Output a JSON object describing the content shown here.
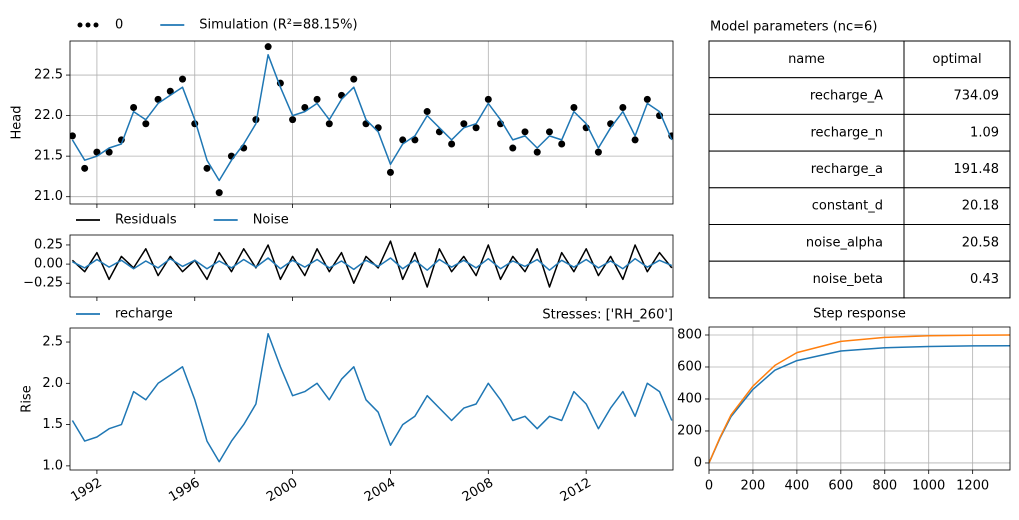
{
  "chart_data": [
    {
      "type": "line",
      "ylabel": "Head",
      "grid": true,
      "xtick_labels": false,
      "xlim": [
        1990.9,
        2015.55
      ],
      "xticks": [
        1992,
        1996,
        2000,
        2004,
        2008,
        2012
      ],
      "ylim": [
        20.91,
        22.92
      ],
      "yticks": [
        {
          "value": 21.0,
          "label": "21.0"
        },
        21.5,
        {
          "value": 22.0,
          "label": "22.0"
        },
        22.5
      ],
      "x": [
        1991.0,
        1991.5,
        1992.0,
        1992.5,
        1993.0,
        1993.5,
        1994.0,
        1994.5,
        1995.0,
        1995.5,
        1996.0,
        1996.5,
        1997.0,
        1997.5,
        1998.0,
        1998.5,
        1999.0,
        1999.5,
        2000.0,
        2000.5,
        2001.0,
        2001.5,
        2002.0,
        2002.5,
        2003.0,
        2003.5,
        2004.0,
        2004.5,
        2005.0,
        2005.5,
        2006.0,
        2006.5,
        2007.0,
        2007.5,
        2008.0,
        2008.5,
        2009.0,
        2009.5,
        2010.0,
        2010.5,
        2011.0,
        2011.5,
        2012.0,
        2012.5,
        2013.0,
        2013.5,
        2014.0,
        2014.5,
        2015.0,
        2015.5
      ],
      "series": [
        {
          "name": "0",
          "color": "#000000",
          "marker": "o",
          "values": [
            21.75,
            21.35,
            21.55,
            21.55,
            21.7,
            22.1,
            21.9,
            22.2,
            22.3,
            22.45,
            21.9,
            21.35,
            21.05,
            21.5,
            21.6,
            21.95,
            22.85,
            22.4,
            21.95,
            22.1,
            22.2,
            21.9,
            22.25,
            22.45,
            21.9,
            21.85,
            21.3,
            21.7,
            21.7,
            22.05,
            21.8,
            21.65,
            21.9,
            21.85,
            22.2,
            21.9,
            21.6,
            21.8,
            21.55,
            21.8,
            21.65,
            22.1,
            21.85,
            21.55,
            21.9,
            22.1,
            21.7,
            22.2,
            22.0,
            21.75
          ]
        },
        {
          "name": "Simulation (R²=88.15%)",
          "color": "#1f77b4",
          "values": [
            21.7,
            21.45,
            21.5,
            21.6,
            21.65,
            22.05,
            21.95,
            22.15,
            22.25,
            22.35,
            21.95,
            21.45,
            21.2,
            21.45,
            21.65,
            21.9,
            22.75,
            22.35,
            22.0,
            22.05,
            22.15,
            21.95,
            22.2,
            22.35,
            21.95,
            21.8,
            21.4,
            21.65,
            21.75,
            22.0,
            21.85,
            21.7,
            21.85,
            21.9,
            22.15,
            21.95,
            21.7,
            21.75,
            21.6,
            21.75,
            21.7,
            22.05,
            21.9,
            21.6,
            21.85,
            22.05,
            21.75,
            22.15,
            22.05,
            21.7
          ]
        }
      ]
    },
    {
      "type": "line",
      "grid": false,
      "xtick_labels": false,
      "xlim": [
        1990.9,
        2015.55
      ],
      "xticks": [
        1992,
        1996,
        2000,
        2004,
        2008,
        2012
      ],
      "ylim": [
        -0.43,
        0.38
      ],
      "yticks": [
        {
          "value": -0.25,
          "label": "−0.25"
        },
        {
          "value": 0,
          "label": "0.00"
        },
        0.25
      ],
      "x": [
        1991.0,
        1991.5,
        1992.0,
        1992.5,
        1993.0,
        1993.5,
        1994.0,
        1994.5,
        1995.0,
        1995.5,
        1996.0,
        1996.5,
        1997.0,
        1997.5,
        1998.0,
        1998.5,
        1999.0,
        1999.5,
        2000.0,
        2000.5,
        2001.0,
        2001.5,
        2002.0,
        2002.5,
        2003.0,
        2003.5,
        2004.0,
        2004.5,
        2005.0,
        2005.5,
        2006.0,
        2006.5,
        2007.0,
        2007.5,
        2008.0,
        2008.5,
        2009.0,
        2009.5,
        2010.0,
        2010.5,
        2011.0,
        2011.5,
        2012.0,
        2012.5,
        2013.0,
        2013.5,
        2014.0,
        2014.5,
        2015.0,
        2015.5
      ],
      "series": [
        {
          "name": "Residuals",
          "color": "#000000",
          "values": [
            0.05,
            -0.1,
            0.15,
            -0.2,
            0.1,
            -0.05,
            0.2,
            -0.15,
            0.1,
            -0.1,
            0.05,
            -0.2,
            0.15,
            -0.1,
            0.2,
            -0.05,
            0.25,
            -0.2,
            0.1,
            -0.15,
            0.2,
            -0.1,
            0.15,
            -0.25,
            0.1,
            -0.05,
            0.3,
            -0.2,
            0.15,
            -0.3,
            0.2,
            -0.1,
            0.1,
            -0.15,
            0.25,
            -0.2,
            0.1,
            -0.1,
            0.2,
            -0.3,
            0.15,
            -0.1,
            0.2,
            -0.15,
            0.1,
            -0.2,
            0.25,
            -0.1,
            0.15,
            -0.05
          ]
        },
        {
          "name": "Noise",
          "color": "#1f77b4",
          "values": [
            0.03,
            -0.05,
            0.06,
            -0.04,
            0.05,
            -0.06,
            0.04,
            -0.05,
            0.07,
            -0.03,
            0.05,
            -0.06,
            0.04,
            -0.05,
            0.06,
            -0.04,
            0.08,
            -0.06,
            0.05,
            -0.04,
            0.06,
            -0.05,
            0.04,
            -0.07,
            0.05,
            -0.03,
            0.08,
            -0.06,
            0.05,
            -0.08,
            0.06,
            -0.04,
            0.05,
            -0.05,
            0.07,
            -0.06,
            0.04,
            -0.03,
            0.06,
            -0.08,
            0.05,
            -0.04,
            0.06,
            -0.05,
            0.04,
            -0.06,
            0.07,
            -0.04,
            0.05,
            -0.02
          ]
        }
      ]
    },
    {
      "type": "line",
      "ylabel": "Rise",
      "title": "Stresses: ['RH_260']",
      "title_loc": "right",
      "grid": false,
      "xtick_labels": true,
      "xtick_rotation": 30,
      "xlim": [
        1990.9,
        2015.55
      ],
      "xticks": [
        1992,
        1996,
        2000,
        2004,
        2008,
        2012
      ],
      "ylim": [
        0.95,
        2.67
      ],
      "yticks": [
        {
          "value": 1.0,
          "label": "1.0"
        },
        1.5,
        {
          "value": 2.0,
          "label": "2.0"
        },
        2.5
      ],
      "x": [
        1991.0,
        1991.5,
        1992.0,
        1992.5,
        1993.0,
        1993.5,
        1994.0,
        1994.5,
        1995.0,
        1995.5,
        1996.0,
        1996.5,
        1997.0,
        1997.5,
        1998.0,
        1998.5,
        1999.0,
        1999.5,
        2000.0,
        2000.5,
        2001.0,
        2001.5,
        2002.0,
        2002.5,
        2003.0,
        2003.5,
        2004.0,
        2004.5,
        2005.0,
        2005.5,
        2006.0,
        2006.5,
        2007.0,
        2007.5,
        2008.0,
        2008.5,
        2009.0,
        2009.5,
        2010.0,
        2010.5,
        2011.0,
        2011.5,
        2012.0,
        2012.5,
        2013.0,
        2013.5,
        2014.0,
        2014.5,
        2015.0,
        2015.5
      ],
      "series": [
        {
          "name": "recharge",
          "color": "#1f77b4",
          "values": [
            1.55,
            1.3,
            1.35,
            1.45,
            1.5,
            1.9,
            1.8,
            2.0,
            2.1,
            2.2,
            1.8,
            1.3,
            1.05,
            1.3,
            1.5,
            1.75,
            2.6,
            2.2,
            1.85,
            1.9,
            2.0,
            1.8,
            2.05,
            2.2,
            1.8,
            1.65,
            1.25,
            1.5,
            1.6,
            1.85,
            1.7,
            1.55,
            1.7,
            1.75,
            2.0,
            1.8,
            1.55,
            1.6,
            1.45,
            1.6,
            1.55,
            1.9,
            1.75,
            1.45,
            1.7,
            1.9,
            1.6,
            2.0,
            1.9,
            1.55
          ]
        }
      ]
    },
    {
      "type": "line",
      "title": "Step response",
      "title_loc": "center",
      "grid": true,
      "xtick_labels": true,
      "xlim": [
        0,
        1370
      ],
      "xticks": [
        0,
        200,
        400,
        600,
        800,
        1000,
        1200
      ],
      "ylim": [
        -44,
        850
      ],
      "yticks": [
        0,
        200,
        400,
        600,
        800
      ],
      "x": [
        0,
        50,
        100,
        200,
        300,
        400,
        600,
        800,
        1000,
        1200,
        1370
      ],
      "series": [
        {
          "color": "#1f77b4",
          "values": [
            0,
            155,
            290,
            460,
            580,
            640,
            700,
            720,
            728,
            732,
            733
          ]
        },
        {
          "color": "#ff7f0e",
          "values": [
            0,
            160,
            300,
            480,
            610,
            690,
            760,
            785,
            795,
            798,
            800
          ]
        }
      ]
    }
  ],
  "table": {
    "title": "Model parameters (nc=6)",
    "header": [
      "name",
      "optimal"
    ],
    "rows": [
      [
        "recharge_A",
        734.09
      ],
      [
        "recharge_n",
        1.09
      ],
      [
        "recharge_a",
        191.48
      ],
      [
        "constant_d",
        20.18
      ],
      [
        "noise_alpha",
        20.58
      ],
      [
        "noise_beta",
        0.43
      ]
    ]
  }
}
